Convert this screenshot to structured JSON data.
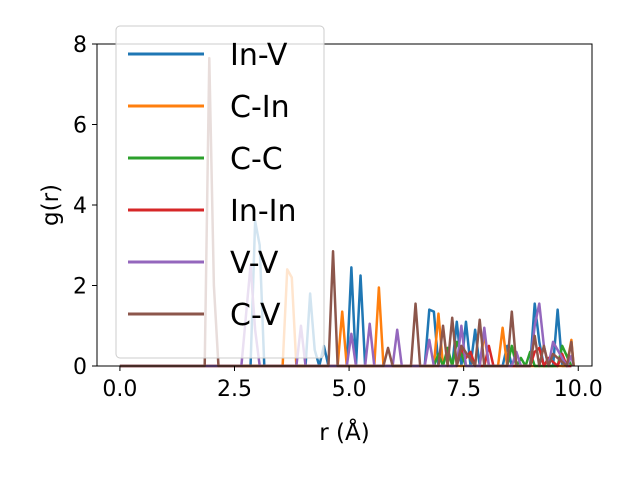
{
  "chart_data": {
    "type": "line",
    "xlabel": "r (Å)",
    "ylabel": "g(r)",
    "xlim": [
      -0.5,
      10.3
    ],
    "ylim": [
      0,
      8
    ],
    "xticks": [
      0.0,
      2.5,
      5.0,
      7.5,
      10.0
    ],
    "xtick_labels": [
      "0.0",
      "2.5",
      "5.0",
      "7.5",
      "10.0"
    ],
    "yticks": [
      0,
      2,
      4,
      6,
      8
    ],
    "ytick_labels": [
      "0",
      "2",
      "4",
      "6",
      "8"
    ],
    "grid": false,
    "legend_position": "upper-left",
    "series": [
      {
        "name": "In-V",
        "color": "#1f77b4",
        "x": [
          0.0,
          2.85,
          2.95,
          3.05,
          3.15,
          4.05,
          4.15,
          4.25,
          4.35,
          4.45,
          4.55,
          4.65,
          4.95,
          5.05,
          5.15,
          5.25,
          5.35,
          5.45,
          6.65,
          6.75,
          6.85,
          6.95,
          7.25,
          7.35,
          7.45,
          7.55,
          7.65,
          7.75,
          7.85,
          8.35,
          8.45,
          8.55,
          8.95,
          9.05,
          9.15,
          9.25,
          9.45,
          9.55,
          9.65,
          9.85
        ],
        "y": [
          0.0,
          0.0,
          3.6,
          3.0,
          0.0,
          0.0,
          1.8,
          0.4,
          0.0,
          0.5,
          0.0,
          0.0,
          0.0,
          2.45,
          0.0,
          2.25,
          0.0,
          0.0,
          0.0,
          1.4,
          1.35,
          0.0,
          0.0,
          1.1,
          0.0,
          1.1,
          0.0,
          0.9,
          0.0,
          0.0,
          0.5,
          0.0,
          0.0,
          1.55,
          0.6,
          0.0,
          0.0,
          1.4,
          0.0,
          0.0
        ]
      },
      {
        "name": "C-In",
        "color": "#ff7f0e",
        "x": [
          0.0,
          3.55,
          3.65,
          3.75,
          3.85,
          4.75,
          4.85,
          4.95,
          5.55,
          5.65,
          5.75,
          6.85,
          6.95,
          7.05,
          7.85,
          7.95,
          8.05,
          8.25,
          8.35,
          8.45,
          9.75,
          9.85,
          9.9
        ],
        "y": [
          0.0,
          0.0,
          2.4,
          2.2,
          0.0,
          0.0,
          1.35,
          0.0,
          0.0,
          1.95,
          0.0,
          0.0,
          1.3,
          0.0,
          0.0,
          0.8,
          0.0,
          0.0,
          0.95,
          0.0,
          0.0,
          0.65,
          0.0
        ]
      },
      {
        "name": "C-C",
        "color": "#2ca02c",
        "x": [
          0.0,
          6.85,
          6.95,
          7.05,
          7.15,
          7.25,
          7.35,
          7.45,
          7.55,
          8.45,
          8.55,
          8.65,
          8.75,
          8.85,
          8.95,
          9.05,
          9.55,
          9.65,
          9.75,
          9.85
        ],
        "y": [
          0.0,
          0.0,
          0.3,
          0.0,
          0.45,
          0.0,
          0.6,
          0.3,
          0.0,
          0.0,
          0.5,
          0.0,
          0.2,
          0.0,
          0.35,
          0.0,
          0.0,
          0.5,
          0.25,
          0.0
        ]
      },
      {
        "name": "In-In",
        "color": "#d62728",
        "x": [
          0.0,
          7.35,
          7.45,
          7.55,
          7.65,
          7.75,
          7.95,
          8.05,
          8.15,
          8.95,
          9.05,
          9.15,
          9.25,
          9.35,
          9.55,
          9.65,
          9.75,
          9.85
        ],
        "y": [
          0.0,
          0.0,
          0.45,
          0.2,
          0.35,
          0.0,
          0.0,
          0.5,
          0.0,
          0.0,
          0.35,
          0.45,
          0.0,
          0.2,
          0.0,
          0.3,
          0.0,
          0.0
        ]
      },
      {
        "name": "V-V",
        "color": "#9467bd",
        "x": [
          0.0,
          2.65,
          2.75,
          2.85,
          2.95,
          3.05,
          3.85,
          3.95,
          4.05,
          4.95,
          5.05,
          5.15,
          5.35,
          5.45,
          5.55,
          5.95,
          6.05,
          6.15,
          6.65,
          6.75,
          6.85,
          7.35,
          7.45,
          7.55,
          7.85,
          7.95,
          8.05,
          8.55,
          8.65,
          8.75,
          8.95,
          9.05,
          9.15,
          9.25,
          9.35,
          9.45,
          9.75,
          9.85,
          9.9
        ],
        "y": [
          0.0,
          0.0,
          1.25,
          2.5,
          0.9,
          0.0,
          0.0,
          1.0,
          0.0,
          0.0,
          0.8,
          0.0,
          0.0,
          1.05,
          0.0,
          0.0,
          0.9,
          0.0,
          0.0,
          0.65,
          0.0,
          0.0,
          1.0,
          0.0,
          0.0,
          0.95,
          0.0,
          0.0,
          0.35,
          0.0,
          0.0,
          1.0,
          1.55,
          0.5,
          0.0,
          0.6,
          0.0,
          0.25,
          0.0
        ]
      },
      {
        "name": "C-V",
        "color": "#8c564b",
        "x": [
          0.0,
          1.85,
          1.95,
          2.05,
          2.15,
          4.55,
          4.65,
          4.75,
          5.75,
          5.85,
          5.95,
          6.35,
          6.45,
          6.55,
          6.95,
          7.05,
          7.15,
          7.25,
          7.35,
          7.45,
          7.75,
          7.85,
          7.95,
          8.45,
          8.55,
          8.65,
          8.95,
          9.05,
          9.15,
          9.25,
          9.35,
          9.45,
          9.75,
          9.85,
          9.9
        ],
        "y": [
          0.0,
          0.0,
          7.65,
          2.0,
          0.0,
          0.0,
          2.85,
          0.0,
          0.0,
          0.45,
          0.0,
          0.0,
          1.55,
          0.0,
          0.0,
          1.0,
          0.0,
          1.2,
          0.0,
          0.5,
          0.0,
          1.15,
          0.0,
          0.0,
          1.35,
          0.0,
          0.0,
          0.75,
          0.0,
          0.5,
          0.0,
          0.3,
          0.0,
          0.6,
          0.0
        ]
      }
    ]
  }
}
